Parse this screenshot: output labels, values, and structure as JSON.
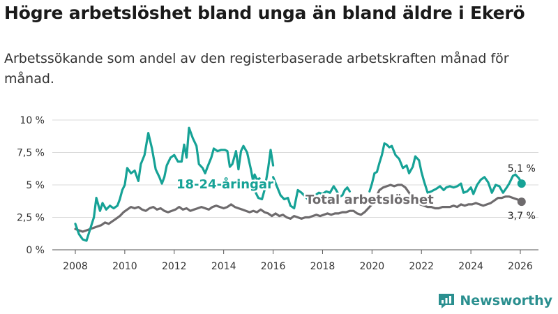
{
  "title": "Högre arbetslöshet bland unga än bland äldre i Ekerö",
  "subtitle": "Arbetssökande som andel av den registerbaserade arbetskraften månad för månad.",
  "brand": "Newsworthy",
  "colors": {
    "youth": "#16a296",
    "total": "#6e6b6d",
    "grid": "#d9d9d9"
  },
  "chart_data": {
    "type": "line",
    "title": "Högre arbetslöshet bland unga än bland äldre i Ekerö",
    "xlabel": "",
    "ylabel": "",
    "xlim": [
      2007.5,
      2026.6
    ],
    "ylim": [
      0,
      10
    ],
    "yticks": [
      0,
      2.5,
      5,
      7.5,
      10
    ],
    "ytick_labels": [
      "0 %",
      "2,5 %",
      "5 %",
      "7,5 %",
      "10 %"
    ],
    "xticks": [
      2008,
      2010,
      2012,
      2014,
      2016,
      2018,
      2020,
      2022,
      2024,
      2026
    ],
    "xtick_labels": [
      "2008",
      "2010",
      "2012",
      "2014",
      "2016",
      "2018",
      "2020",
      "2022",
      "2024",
      "2026"
    ],
    "grid": true,
    "series": [
      {
        "name": "18-24-åringar",
        "label": "18-24-åringar",
        "end_label": "5,1 %",
        "end_value": 5.1,
        "color": "#16a296",
        "points": [
          [
            2008.0,
            2.0
          ],
          [
            2008.15,
            1.2
          ],
          [
            2008.3,
            0.8
          ],
          [
            2008.45,
            0.7
          ],
          [
            2008.6,
            1.6
          ],
          [
            2008.75,
            2.5
          ],
          [
            2008.85,
            4.0
          ],
          [
            2009.0,
            3.0
          ],
          [
            2009.1,
            3.6
          ],
          [
            2009.25,
            3.1
          ],
          [
            2009.4,
            3.4
          ],
          [
            2009.55,
            3.2
          ],
          [
            2009.7,
            3.4
          ],
          [
            2009.8,
            3.9
          ],
          [
            2009.9,
            4.6
          ],
          [
            2010.0,
            5.0
          ],
          [
            2010.1,
            6.3
          ],
          [
            2010.25,
            5.9
          ],
          [
            2010.4,
            6.1
          ],
          [
            2010.55,
            5.3
          ],
          [
            2010.65,
            6.6
          ],
          [
            2010.8,
            7.3
          ],
          [
            2010.95,
            9.0
          ],
          [
            2011.1,
            7.8
          ],
          [
            2011.25,
            6.2
          ],
          [
            2011.4,
            5.6
          ],
          [
            2011.5,
            5.1
          ],
          [
            2011.6,
            5.6
          ],
          [
            2011.7,
            6.5
          ],
          [
            2011.85,
            7.1
          ],
          [
            2012.0,
            7.3
          ],
          [
            2012.15,
            6.8
          ],
          [
            2012.3,
            6.8
          ],
          [
            2012.4,
            8.1
          ],
          [
            2012.5,
            7.1
          ],
          [
            2012.6,
            9.4
          ],
          [
            2012.75,
            8.6
          ],
          [
            2012.9,
            8.0
          ],
          [
            2013.0,
            6.6
          ],
          [
            2013.15,
            6.3
          ],
          [
            2013.25,
            5.9
          ],
          [
            2013.35,
            6.4
          ],
          [
            2013.5,
            7.1
          ],
          [
            2013.6,
            7.8
          ],
          [
            2013.75,
            7.6
          ],
          [
            2013.9,
            7.7
          ],
          [
            2014.05,
            7.7
          ],
          [
            2014.15,
            7.6
          ],
          [
            2014.25,
            6.4
          ],
          [
            2014.35,
            6.6
          ],
          [
            2014.5,
            7.6
          ],
          [
            2014.6,
            6.2
          ],
          [
            2014.7,
            7.6
          ],
          [
            2014.8,
            8.0
          ],
          [
            2014.95,
            7.5
          ],
          [
            2015.1,
            6.2
          ],
          [
            2015.2,
            5.2
          ],
          [
            2015.3,
            4.4
          ],
          [
            2015.4,
            4.0
          ],
          [
            2015.55,
            3.9
          ],
          [
            2015.65,
            4.6
          ],
          [
            2015.8,
            6.3
          ],
          [
            2015.9,
            7.7
          ],
          [
            2016.0,
            6.5
          ]
        ],
        "points_b": [
          [
            2015.05,
            5.2
          ],
          [
            2015.15,
            5.0
          ],
          [
            2015.25,
            5.8
          ],
          [
            2015.35,
            5.4
          ],
          [
            2015.45,
            5.5
          ]
        ],
        "points_c": [
          [
            2016.0,
            5.6
          ],
          [
            2016.15,
            4.9
          ],
          [
            2016.3,
            4.2
          ],
          [
            2016.45,
            3.9
          ],
          [
            2016.6,
            4.0
          ],
          [
            2016.7,
            3.4
          ],
          [
            2016.85,
            3.2
          ],
          [
            2017.0,
            4.6
          ],
          [
            2017.15,
            4.4
          ],
          [
            2017.25,
            4.2
          ],
          [
            2017.4,
            3.9
          ],
          [
            2017.55,
            3.8
          ],
          [
            2017.65,
            4.2
          ]
        ],
        "points_d": [
          [
            2017.7,
            4.2
          ],
          [
            2017.85,
            4.4
          ],
          [
            2018.0,
            4.3
          ],
          [
            2018.15,
            4.5
          ],
          [
            2018.3,
            4.4
          ],
          [
            2018.45,
            4.9
          ],
          [
            2018.55,
            4.6
          ],
          [
            2018.7,
            4.1
          ],
          [
            2018.8,
            4.2
          ],
          [
            2018.9,
            4.6
          ],
          [
            2019.0,
            4.8
          ],
          [
            2019.1,
            4.5
          ]
        ],
        "points_e": [
          [
            2019.9,
            4.5
          ],
          [
            2020.0,
            5.1
          ],
          [
            2020.1,
            5.9
          ],
          [
            2020.2,
            6.0
          ],
          [
            2020.3,
            6.7
          ],
          [
            2020.4,
            7.3
          ],
          [
            2020.5,
            8.2
          ],
          [
            2020.6,
            8.1
          ],
          [
            2020.7,
            7.9
          ],
          [
            2020.8,
            8.0
          ],
          [
            2020.95,
            7.3
          ],
          [
            2021.1,
            7.0
          ],
          [
            2021.25,
            6.3
          ],
          [
            2021.4,
            6.5
          ],
          [
            2021.5,
            5.9
          ],
          [
            2021.65,
            6.4
          ],
          [
            2021.75,
            7.2
          ],
          [
            2021.9,
            6.9
          ],
          [
            2022.0,
            6.0
          ],
          [
            2022.1,
            5.3
          ],
          [
            2022.25,
            4.4
          ],
          [
            2022.4,
            4.5
          ],
          [
            2022.5,
            4.6
          ],
          [
            2022.6,
            4.7
          ],
          [
            2022.75,
            4.9
          ],
          [
            2022.9,
            4.6
          ],
          [
            2023.0,
            4.8
          ],
          [
            2023.15,
            4.9
          ],
          [
            2023.3,
            4.8
          ],
          [
            2023.45,
            4.9
          ],
          [
            2023.6,
            5.1
          ],
          [
            2023.7,
            4.4
          ],
          [
            2023.85,
            4.5
          ],
          [
            2024.0,
            4.8
          ],
          [
            2024.1,
            4.3
          ],
          [
            2024.25,
            5.0
          ],
          [
            2024.4,
            5.4
          ],
          [
            2024.55,
            5.6
          ],
          [
            2024.7,
            5.2
          ],
          [
            2024.85,
            4.4
          ],
          [
            2025.0,
            5.0
          ],
          [
            2025.15,
            4.9
          ],
          [
            2025.3,
            4.4
          ],
          [
            2025.45,
            4.8
          ],
          [
            2025.55,
            5.1
          ],
          [
            2025.7,
            5.7
          ],
          [
            2025.8,
            5.8
          ],
          [
            2025.95,
            5.5
          ],
          [
            2026.05,
            5.1
          ]
        ]
      },
      {
        "name": "Total arbetslöshet",
        "label": "Total arbetslöshet",
        "end_label": "3,7 %",
        "end_value": 3.7,
        "color": "#6e6b6d",
        "points": [
          [
            2008.0,
            1.6
          ],
          [
            2008.15,
            1.5
          ],
          [
            2008.3,
            1.4
          ],
          [
            2008.45,
            1.5
          ],
          [
            2008.6,
            1.6
          ],
          [
            2008.75,
            1.7
          ],
          [
            2008.9,
            1.8
          ],
          [
            2009.05,
            1.9
          ],
          [
            2009.2,
            2.1
          ],
          [
            2009.35,
            2.0
          ],
          [
            2009.5,
            2.2
          ],
          [
            2009.65,
            2.4
          ],
          [
            2009.8,
            2.6
          ],
          [
            2009.95,
            2.9
          ],
          [
            2010.1,
            3.1
          ],
          [
            2010.25,
            3.3
          ],
          [
            2010.4,
            3.2
          ],
          [
            2010.55,
            3.3
          ],
          [
            2010.7,
            3.1
          ],
          [
            2010.85,
            3.0
          ],
          [
            2011.0,
            3.2
          ],
          [
            2011.15,
            3.3
          ],
          [
            2011.3,
            3.1
          ],
          [
            2011.45,
            3.2
          ],
          [
            2011.6,
            3.0
          ],
          [
            2011.75,
            2.9
          ],
          [
            2011.9,
            3.0
          ],
          [
            2012.05,
            3.1
          ],
          [
            2012.2,
            3.3
          ],
          [
            2012.35,
            3.1
          ],
          [
            2012.5,
            3.2
          ],
          [
            2012.65,
            3.0
          ],
          [
            2012.8,
            3.1
          ],
          [
            2012.95,
            3.2
          ],
          [
            2013.1,
            3.3
          ],
          [
            2013.25,
            3.2
          ],
          [
            2013.4,
            3.1
          ],
          [
            2013.55,
            3.3
          ],
          [
            2013.7,
            3.4
          ],
          [
            2013.85,
            3.3
          ],
          [
            2014.0,
            3.2
          ],
          [
            2014.15,
            3.3
          ],
          [
            2014.3,
            3.5
          ],
          [
            2014.45,
            3.3
          ],
          [
            2014.6,
            3.2
          ],
          [
            2014.75,
            3.1
          ],
          [
            2014.9,
            3.0
          ],
          [
            2015.05,
            2.9
          ],
          [
            2015.2,
            3.0
          ],
          [
            2015.35,
            2.9
          ],
          [
            2015.5,
            3.1
          ],
          [
            2015.65,
            2.9
          ],
          [
            2015.8,
            2.8
          ],
          [
            2015.95,
            2.6
          ],
          [
            2016.1,
            2.8
          ],
          [
            2016.25,
            2.6
          ],
          [
            2016.4,
            2.7
          ],
          [
            2016.55,
            2.5
          ],
          [
            2016.7,
            2.4
          ],
          [
            2016.85,
            2.6
          ],
          [
            2017.0,
            2.5
          ],
          [
            2017.15,
            2.4
          ],
          [
            2017.3,
            2.5
          ],
          [
            2017.45,
            2.5
          ],
          [
            2017.6,
            2.6
          ],
          [
            2017.75,
            2.7
          ],
          [
            2017.9,
            2.6
          ],
          [
            2018.05,
            2.7
          ],
          [
            2018.2,
            2.8
          ],
          [
            2018.35,
            2.7
          ],
          [
            2018.5,
            2.8
          ],
          [
            2018.65,
            2.8
          ],
          [
            2018.8,
            2.9
          ],
          [
            2018.95,
            2.9
          ],
          [
            2019.1,
            3.0
          ],
          [
            2019.25,
            3.0
          ],
          [
            2019.4,
            2.8
          ],
          [
            2019.55,
            2.7
          ],
          [
            2019.7,
            2.9
          ],
          [
            2019.85,
            3.2
          ],
          [
            2020.0,
            3.5
          ],
          [
            2020.15,
            4.0
          ],
          [
            2020.3,
            4.6
          ],
          [
            2020.45,
            4.8
          ],
          [
            2020.6,
            4.9
          ],
          [
            2020.75,
            5.0
          ],
          [
            2020.9,
            4.9
          ],
          [
            2021.05,
            5.0
          ],
          [
            2021.2,
            5.0
          ],
          [
            2021.35,
            4.8
          ],
          [
            2021.5,
            4.4
          ],
          [
            2021.65,
            4.0
          ],
          [
            2021.8,
            3.7
          ],
          [
            2021.95,
            3.5
          ],
          [
            2022.1,
            3.4
          ],
          [
            2022.25,
            3.3
          ],
          [
            2022.4,
            3.3
          ],
          [
            2022.55,
            3.2
          ],
          [
            2022.7,
            3.2
          ],
          [
            2022.85,
            3.3
          ],
          [
            2023.0,
            3.3
          ],
          [
            2023.15,
            3.3
          ],
          [
            2023.3,
            3.4
          ],
          [
            2023.45,
            3.3
          ],
          [
            2023.6,
            3.5
          ],
          [
            2023.75,
            3.4
          ],
          [
            2023.9,
            3.5
          ],
          [
            2024.05,
            3.5
          ],
          [
            2024.2,
            3.6
          ],
          [
            2024.35,
            3.5
          ],
          [
            2024.5,
            3.4
          ],
          [
            2024.65,
            3.5
          ],
          [
            2024.8,
            3.6
          ],
          [
            2024.95,
            3.8
          ],
          [
            2025.1,
            4.0
          ],
          [
            2025.25,
            4.0
          ],
          [
            2025.4,
            4.1
          ],
          [
            2025.55,
            4.1
          ],
          [
            2025.7,
            4.0
          ],
          [
            2025.85,
            3.9
          ],
          [
            2026.0,
            3.8
          ],
          [
            2026.05,
            3.7
          ]
        ]
      }
    ]
  }
}
